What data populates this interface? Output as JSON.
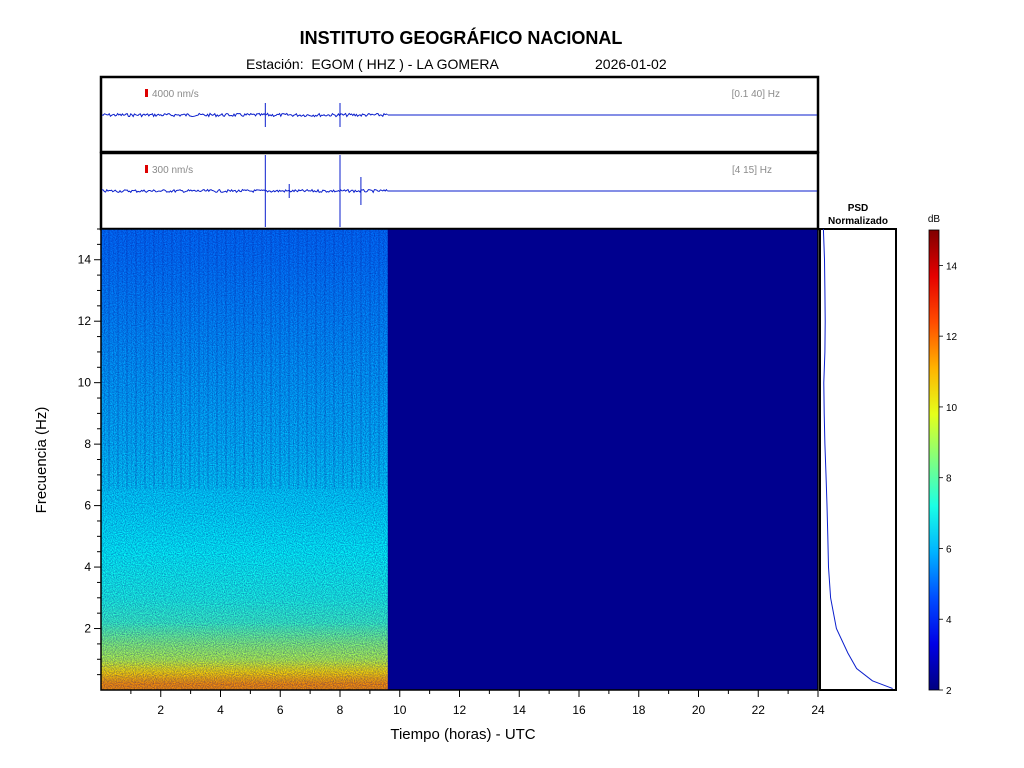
{
  "header": {
    "title": "INSTITUTO GEOGRÁFICO NACIONAL",
    "station_prefix": "Estación:",
    "station": "EGOM ( HHZ ) - LA GOMERA",
    "date": "2026-01-02"
  },
  "chart_data": [
    {
      "type": "line",
      "panel": "broadband seismogram",
      "scale_label": "4000 nm/s",
      "band_label": "[0.1 40] Hz",
      "x_range_hours": [
        0,
        24
      ],
      "data_until_hours": 9.6,
      "spikes_hours": [
        5.5,
        8.0
      ]
    },
    {
      "type": "line",
      "panel": "filtered seismogram",
      "scale_label": "300 nm/s",
      "band_label": "[4 15] Hz",
      "x_range_hours": [
        0,
        24
      ],
      "data_until_hours": 9.6,
      "spikes_hours": [
        5.5,
        6.3,
        8.0,
        8.7
      ]
    },
    {
      "type": "heatmap",
      "panel": "spectrogram",
      "xlabel": "Tiempo (horas) - UTC",
      "ylabel": "Frecuencia  (Hz)",
      "xlim": [
        0,
        24
      ],
      "ylim": [
        0,
        15
      ],
      "xticks": [
        "2",
        "4",
        "6",
        "8",
        "10",
        "12",
        "14",
        "16",
        "18",
        "20",
        "22",
        "24"
      ],
      "yticks": [
        "2",
        "4",
        "6",
        "8",
        "10",
        "12",
        "14"
      ],
      "data_until_hours": 9.6,
      "db_by_frequency": [
        {
          "hz": 0.2,
          "db": 11.5
        },
        {
          "hz": 0.6,
          "db": 10.5
        },
        {
          "hz": 1.0,
          "db": 9.2
        },
        {
          "hz": 1.5,
          "db": 8.6
        },
        {
          "hz": 2.2,
          "db": 7.6
        },
        {
          "hz": 3.0,
          "db": 7.2
        },
        {
          "hz": 4.5,
          "db": 6.9
        },
        {
          "hz": 6.0,
          "db": 6.5
        },
        {
          "hz": 8.0,
          "db": 6.1
        },
        {
          "hz": 10.0,
          "db": 5.8
        },
        {
          "hz": 12.0,
          "db": 5.5
        },
        {
          "hz": 14.0,
          "db": 5.2
        },
        {
          "hz": 15.0,
          "db": 5.1
        }
      ],
      "empty_db": 2
    },
    {
      "type": "line",
      "panel": "psd",
      "title": "PSD\nNormalizado",
      "title_lines": [
        "PSD",
        "Normalizado"
      ],
      "points": [
        {
          "hz": 0.05,
          "v": 0.98
        },
        {
          "hz": 0.3,
          "v": 0.7
        },
        {
          "hz": 0.7,
          "v": 0.48
        },
        {
          "hz": 1.2,
          "v": 0.36
        },
        {
          "hz": 2.0,
          "v": 0.2
        },
        {
          "hz": 3.0,
          "v": 0.12
        },
        {
          "hz": 4.0,
          "v": 0.09
        },
        {
          "hz": 5.0,
          "v": 0.08
        },
        {
          "hz": 6.0,
          "v": 0.07
        },
        {
          "hz": 7.0,
          "v": 0.055
        },
        {
          "hz": 8.0,
          "v": 0.04
        },
        {
          "hz": 9.0,
          "v": 0.03
        },
        {
          "hz": 10.0,
          "v": 0.025
        },
        {
          "hz": 11.0,
          "v": 0.04
        },
        {
          "hz": 12.0,
          "v": 0.045
        },
        {
          "hz": 13.0,
          "v": 0.04
        },
        {
          "hz": 14.0,
          "v": 0.035
        },
        {
          "hz": 15.0,
          "v": 0.02
        }
      ],
      "xlim": [
        0,
        1
      ],
      "ylim": [
        0,
        15
      ]
    },
    {
      "type": "heatmap",
      "panel": "colorbar",
      "unit_label": "dB",
      "range": [
        2,
        15
      ],
      "ticks": [
        "2",
        "4",
        "6",
        "8",
        "10",
        "12",
        "14"
      ],
      "tick_values": [
        2,
        4,
        6,
        8,
        10,
        12,
        14
      ]
    }
  ],
  "colors": {
    "trace": "#0a1ecc",
    "scale_marker": "#dd0000",
    "annotation_gray": "#8a8a8a",
    "empty_fill": "#00008f"
  }
}
